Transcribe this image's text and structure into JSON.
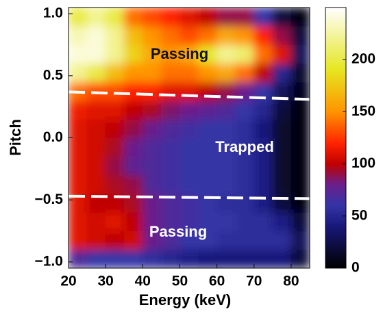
{
  "chart_data": {
    "type": "heatmap",
    "x_label": "Energy (keV)",
    "y_label": "Pitch",
    "x": [
      20,
      25,
      30,
      35,
      40,
      45,
      50,
      55,
      60,
      65,
      70,
      75,
      80,
      85
    ],
    "y": [
      -1.05,
      -0.9,
      -0.75,
      -0.6,
      -0.45,
      -0.3,
      -0.15,
      0,
      0.15,
      0.3,
      0.45,
      0.6,
      0.75,
      0.9,
      1.05
    ],
    "z": [
      [
        70,
        60,
        60,
        60,
        55,
        50,
        45,
        40,
        40,
        40,
        40,
        40,
        20
      ],
      [
        110,
        105,
        100,
        105,
        80,
        70,
        60,
        60,
        55,
        55,
        55,
        55,
        30
      ],
      [
        110,
        105,
        110,
        100,
        80,
        70,
        65,
        60,
        60,
        55,
        55,
        45,
        20
      ],
      [
        110,
        100,
        100,
        95,
        80,
        70,
        65,
        60,
        55,
        55,
        45,
        20,
        5
      ],
      [
        110,
        105,
        95,
        90,
        70,
        65,
        60,
        60,
        60,
        55,
        45,
        15,
        5
      ],
      [
        110,
        105,
        90,
        75,
        70,
        65,
        60,
        60,
        60,
        55,
        45,
        15,
        5
      ],
      [
        110,
        105,
        95,
        80,
        70,
        65,
        60,
        60,
        60,
        55,
        45,
        15,
        5
      ],
      [
        110,
        105,
        100,
        90,
        80,
        70,
        65,
        60,
        60,
        55,
        40,
        15,
        5
      ],
      [
        115,
        110,
        110,
        100,
        95,
        85,
        80,
        75,
        70,
        60,
        50,
        20,
        5
      ],
      [
        140,
        130,
        130,
        120,
        120,
        110,
        110,
        100,
        90,
        80,
        60,
        30,
        10
      ],
      [
        220,
        200,
        170,
        150,
        150,
        140,
        140,
        150,
        160,
        140,
        100,
        50,
        15
      ],
      [
        240,
        240,
        220,
        180,
        160,
        150,
        160,
        190,
        220,
        210,
        140,
        110,
        30
      ],
      [
        230,
        240,
        220,
        170,
        150,
        140,
        130,
        140,
        160,
        150,
        120,
        90,
        20
      ],
      [
        200,
        220,
        200,
        140,
        130,
        120,
        110,
        100,
        90,
        90,
        60,
        20,
        5
      ]
    ],
    "xlim": [
      20,
      85
    ],
    "ylim": [
      -1.05,
      1.05
    ],
    "zlim": [
      0,
      250
    ],
    "xticks": [
      20,
      30,
      40,
      50,
      60,
      70,
      80
    ],
    "yticks": [
      {
        "value": -1,
        "label": "−1.0"
      },
      {
        "value": -0.5,
        "label": "−0.5"
      },
      {
        "value": 0,
        "label": "0.0"
      },
      0.5,
      {
        "value": 1,
        "label": "1.0"
      }
    ],
    "zticks": [
      0,
      50,
      100,
      150,
      200
    ],
    "colorscale": [
      [
        0,
        "#000000"
      ],
      [
        40,
        "#18187a"
      ],
      [
        60,
        "#3434a6"
      ],
      [
        80,
        "#6a1f8c"
      ],
      [
        100,
        "#c00000"
      ],
      [
        120,
        "#ff2400"
      ],
      [
        150,
        "#ff9400"
      ],
      [
        190,
        "#e6e620"
      ],
      [
        250,
        "#ffffff"
      ]
    ],
    "boundaries": [
      {
        "x": [
          20,
          85
        ],
        "y": [
          0.37,
          0.31
        ]
      },
      {
        "x": [
          20,
          85
        ],
        "y": [
          -0.47,
          -0.49
        ]
      }
    ],
    "annotations": [
      "Passing",
      "Trapped",
      "Passing"
    ]
  }
}
